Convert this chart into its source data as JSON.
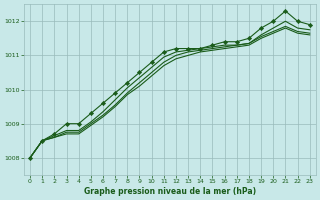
{
  "background_color": "#c8e8e8",
  "grid_color": "#99bbbb",
  "line_color": "#1a5c1a",
  "marker_color": "#1a5c1a",
  "xlabel": "Graphe pression niveau de la mer (hPa)",
  "xlabel_color": "#1a5c1a",
  "tick_color": "#1a5c1a",
  "ylim": [
    1007.5,
    1012.5
  ],
  "xlim": [
    -0.5,
    23.5
  ],
  "yticks": [
    1008,
    1009,
    1010,
    1011,
    1012
  ],
  "xticks": [
    0,
    1,
    2,
    3,
    4,
    5,
    6,
    7,
    8,
    9,
    10,
    11,
    12,
    13,
    14,
    15,
    16,
    17,
    18,
    19,
    20,
    21,
    22,
    23
  ],
  "series": [
    [
      1008.0,
      1008.5,
      1008.7,
      1009.0,
      1009.0,
      1009.3,
      1009.6,
      1009.9,
      1010.2,
      1010.5,
      1010.8,
      1011.1,
      1011.2,
      1011.2,
      1011.2,
      1011.3,
      1011.4,
      1011.4,
      1011.5,
      1011.8,
      1012.0,
      1012.3,
      1012.0,
      1011.9
    ],
    [
      1008.0,
      1008.5,
      1008.65,
      1008.8,
      1008.8,
      1009.05,
      1009.35,
      1009.7,
      1010.05,
      1010.35,
      1010.65,
      1010.95,
      1011.1,
      1011.15,
      1011.2,
      1011.25,
      1011.3,
      1011.3,
      1011.35,
      1011.6,
      1011.8,
      1012.0,
      1011.8,
      1011.75
    ],
    [
      1008.0,
      1008.5,
      1008.6,
      1008.75,
      1008.75,
      1009.0,
      1009.25,
      1009.55,
      1009.9,
      1010.2,
      1010.5,
      1010.8,
      1011.0,
      1011.1,
      1011.15,
      1011.2,
      1011.25,
      1011.3,
      1011.35,
      1011.55,
      1011.7,
      1011.85,
      1011.7,
      1011.65
    ],
    [
      1008.0,
      1008.5,
      1008.6,
      1008.7,
      1008.7,
      1008.95,
      1009.2,
      1009.5,
      1009.85,
      1010.1,
      1010.4,
      1010.7,
      1010.9,
      1011.0,
      1011.1,
      1011.15,
      1011.2,
      1011.25,
      1011.3,
      1011.5,
      1011.65,
      1011.8,
      1011.65,
      1011.6
    ]
  ],
  "series_with_markers": [
    0
  ],
  "figsize": [
    3.2,
    2.0
  ],
  "dpi": 100
}
